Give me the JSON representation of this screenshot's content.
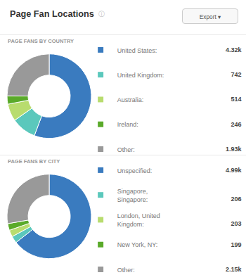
{
  "chart_data": [
    {
      "type": "pie",
      "title": "Page Fan Locations",
      "annotations": [
        "ⓘ",
        "Export ▾"
      ],
      "subtitle": "PAGE FANS BY COUNTRY",
      "categories": [
        "United States: ",
        "United Kingdom: ",
        "Australia: ",
        "Ireland: ",
        "Other: "
      ],
      "values": [
        4320,
        742,
        514,
        246,
        1930
      ],
      "value_labels": [
        "4.32k",
        "742",
        "514",
        "246",
        "1.93k"
      ],
      "colors": [
        "#3a7bbf",
        "#5bc8bc",
        "#b8dc6e",
        "#5aaa2a",
        "#999999"
      ]
    },
    {
      "type": "pie",
      "subtitle": "PAGE FANS BY CITY",
      "categories": [
        "Unspecified: ",
        "Singapore,\nSingapore: ",
        "London, United\nKingdom: ",
        "New York, NY: ",
        "Other: "
      ],
      "values": [
        4990,
        206,
        203,
        199,
        2150
      ],
      "value_labels": [
        "4.99k",
        "206",
        "203",
        "199",
        "2.15k"
      ],
      "colors": [
        "#3a7bbf",
        "#5bc8bc",
        "#b8dc6e",
        "#5aaa2a",
        "#999999"
      ]
    }
  ]
}
